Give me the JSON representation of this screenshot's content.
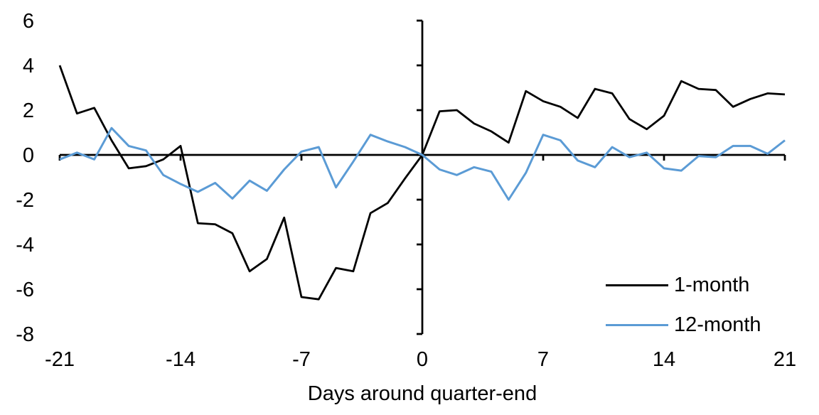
{
  "chart_data": {
    "type": "line",
    "title": "",
    "xlabel": "Days around quarter-end",
    "ylabel": "",
    "xlim": [
      -21,
      21
    ],
    "ylim": [
      -8,
      6
    ],
    "grid": false,
    "legend_position": "inside-bottom-right",
    "x_ticks": [
      -21,
      -14,
      -7,
      0,
      7,
      14,
      21
    ],
    "y_ticks": [
      6,
      4,
      2,
      0,
      -2,
      -4,
      -6,
      -8
    ],
    "x": [
      -21,
      -20,
      -19,
      -18,
      -17,
      -16,
      -15,
      -14,
      -13,
      -12,
      -11,
      -10,
      -9,
      -8,
      -7,
      -6,
      -5,
      -4,
      -3,
      -2,
      -1,
      0,
      1,
      2,
      3,
      4,
      5,
      6,
      7,
      8,
      9,
      10,
      11,
      12,
      13,
      14,
      15,
      16,
      17,
      18,
      19,
      20,
      21
    ],
    "series": [
      {
        "name": "1-month",
        "color": "#000000",
        "values": [
          4.0,
          1.85,
          2.1,
          0.65,
          -0.6,
          -0.5,
          -0.2,
          0.4,
          -3.05,
          -3.1,
          -3.5,
          -5.2,
          -4.65,
          -2.8,
          -6.35,
          -6.45,
          -5.05,
          -5.2,
          -2.6,
          -2.15,
          -1.05,
          0.0,
          1.95,
          2.0,
          1.4,
          1.05,
          0.55,
          2.85,
          2.4,
          2.15,
          1.65,
          2.95,
          2.75,
          1.6,
          1.15,
          1.75,
          3.3,
          2.95,
          2.9,
          2.15,
          2.5,
          2.75,
          2.7
        ]
      },
      {
        "name": "12-month",
        "color": "#5B9BD5",
        "values": [
          -0.2,
          0.1,
          -0.2,
          1.2,
          0.4,
          0.2,
          -0.9,
          -1.3,
          -1.65,
          -1.25,
          -1.95,
          -1.15,
          -1.6,
          -0.65,
          0.15,
          0.35,
          -1.45,
          -0.3,
          0.9,
          0.6,
          0.35,
          0.0,
          -0.65,
          -0.9,
          -0.55,
          -0.75,
          -2.0,
          -0.8,
          0.9,
          0.65,
          -0.25,
          -0.55,
          0.35,
          -0.1,
          0.1,
          -0.6,
          -0.7,
          -0.05,
          -0.1,
          0.4,
          0.4,
          0.05,
          0.65
        ]
      }
    ],
    "axis_color": "#000000"
  }
}
